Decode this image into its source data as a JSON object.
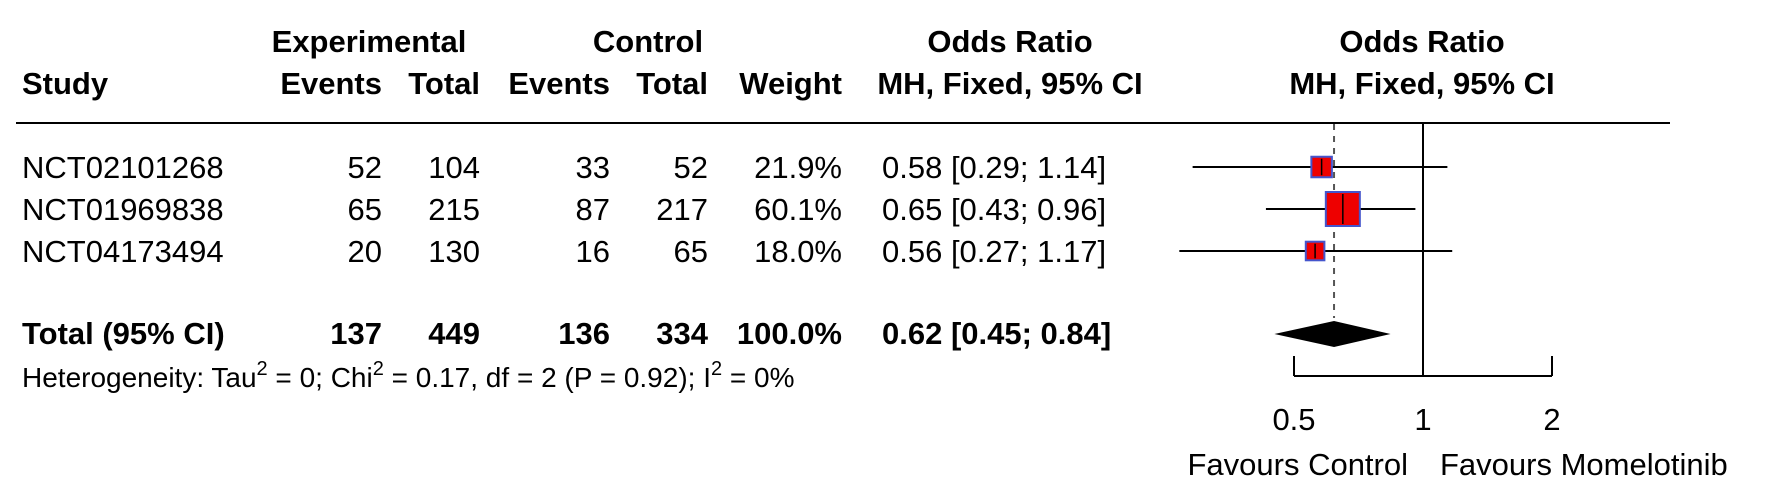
{
  "headers": {
    "study": "Study",
    "experimental": "Experimental",
    "control": "Control",
    "events": "Events",
    "total": "Total",
    "weight": "Weight",
    "or_title": "Odds Ratio",
    "or_sub": "MH, Fixed, 95% CI",
    "plot_title": "Odds Ratio",
    "plot_sub": "MH, Fixed, 95% CI"
  },
  "rows": [
    {
      "study": "NCT02101268",
      "exp_events": "52",
      "exp_total": "104",
      "ctl_events": "33",
      "ctl_total": "52",
      "weight": "21.9%",
      "ci_text": "0.58 [0.29; 1.14]"
    },
    {
      "study": "NCT01969838",
      "exp_events": "65",
      "exp_total": "215",
      "ctl_events": "87",
      "ctl_total": "217",
      "weight": "60.1%",
      "ci_text": "0.65 [0.43; 0.96]"
    },
    {
      "study": "NCT04173494",
      "exp_events": "20",
      "exp_total": "130",
      "ctl_events": "16",
      "ctl_total": "65",
      "weight": "18.0%",
      "ci_text": "0.56 [0.27; 1.17]"
    }
  ],
  "total_row": {
    "label": "Total (95% CI)",
    "exp_events": "137",
    "exp_total": "449",
    "ctl_events": "136",
    "ctl_total": "334",
    "weight": "100.0%",
    "ci_text": "0.62 [0.45; 0.84]"
  },
  "heterogeneity": {
    "prefix": "Heterogeneity: Tau",
    "sup1": "2",
    "mid1": " = 0; Chi",
    "sup2": "2",
    "mid2": " = 0.17, df = 2 (P = 0.92); I",
    "sup3": "2",
    "suffix": " = 0%"
  },
  "axis": {
    "ticks": [
      "0.5",
      "1",
      "2"
    ],
    "left_label": "Favours Control",
    "right_label": "Favours Momelotinib"
  },
  "colors": {
    "box_fill": "#ee0000",
    "box_border": "#4455cc",
    "line": "#000000",
    "dashed": "#555555"
  },
  "chart_data": {
    "type": "forest",
    "scale": "log",
    "xlim": [
      0.5,
      2
    ],
    "reference_line": 1,
    "studies": [
      {
        "name": "NCT02101268",
        "or": 0.58,
        "lower": 0.29,
        "upper": 1.14,
        "weight": 21.9
      },
      {
        "name": "NCT01969838",
        "or": 0.65,
        "lower": 0.43,
        "upper": 0.96,
        "weight": 60.1
      },
      {
        "name": "NCT04173494",
        "or": 0.56,
        "lower": 0.27,
        "upper": 1.17,
        "weight": 18.0
      }
    ],
    "pooled": {
      "or": 0.62,
      "lower": 0.45,
      "upper": 0.84
    }
  }
}
